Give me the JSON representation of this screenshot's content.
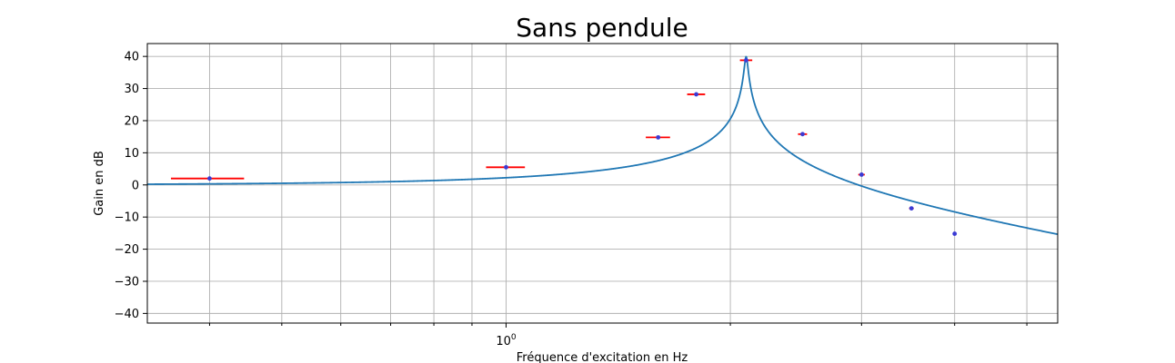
{
  "chart_data": {
    "type": "scatter",
    "title": "Sans pendule",
    "xlabel": "Fréquence d'excitation en Hz",
    "ylabel": "Gain en dB",
    "xscale": "log",
    "xlim": [
      0.33,
      5.5
    ],
    "ylim": [
      -43,
      44
    ],
    "grid": true,
    "x_tick_labels": [
      {
        "value": 1,
        "base": "10",
        "exp": "0"
      }
    ],
    "y_ticks": [
      40,
      30,
      20,
      10,
      0,
      -10,
      -20,
      -30,
      -40
    ],
    "y_tick_labels": [
      "40",
      "30",
      "20",
      "10",
      "0",
      "−10",
      "−20",
      "−30",
      "−40"
    ],
    "model_curve": {
      "color": "#1f77b4",
      "x_min": 0.33,
      "x_max": 5.5,
      "resonance_frequency": 2.1,
      "damping": 0.005,
      "peak_db": 40.2
    },
    "measurements": {
      "point_color": "#3b3bd4",
      "error_bar_color": "#ff0000",
      "points": [
        {
          "x": 0.4,
          "y": 2.0,
          "xerr": 0.045
        },
        {
          "x": 1.0,
          "y": 5.5,
          "xerr": 0.06
        },
        {
          "x": 1.6,
          "y": 14.8,
          "xerr": 0.06
        },
        {
          "x": 1.8,
          "y": 28.2,
          "xerr": 0.05
        },
        {
          "x": 2.1,
          "y": 38.8,
          "xerr": 0.04
        },
        {
          "x": 2.5,
          "y": 15.8,
          "xerr": 0.035
        },
        {
          "x": 3.0,
          "y": 3.2,
          "xerr": 0.03
        },
        {
          "x": 3.5,
          "y": -7.3,
          "xerr": 0.025
        },
        {
          "x": 4.0,
          "y": -15.2,
          "xerr": 0.02
        }
      ]
    }
  }
}
